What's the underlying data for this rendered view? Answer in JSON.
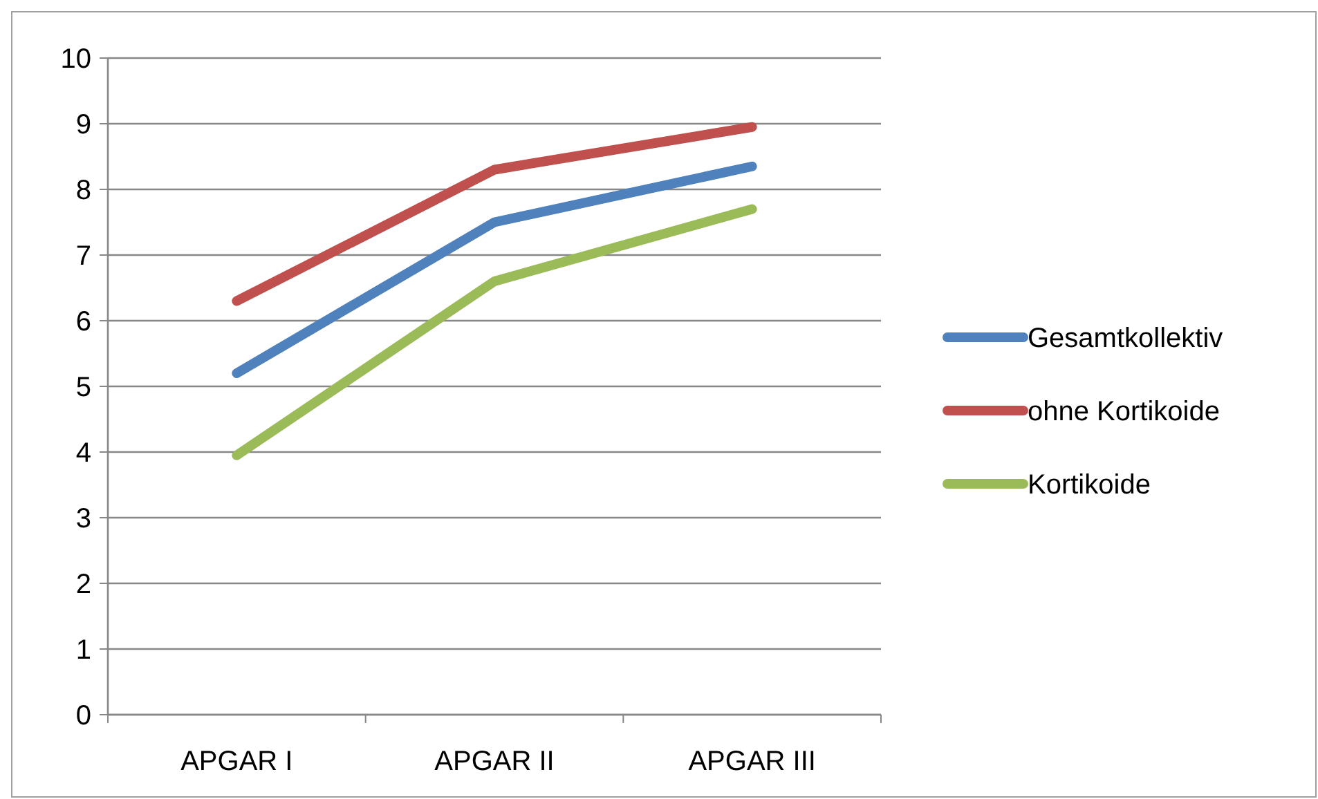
{
  "chart_data": {
    "type": "line",
    "categories": [
      "APGAR I",
      "APGAR II",
      "APGAR III"
    ],
    "series": [
      {
        "name": "Gesamtkollektiv",
        "color": "#4f81bd",
        "values": [
          5.2,
          7.5,
          8.35
        ]
      },
      {
        "name": "ohne Kortikoide",
        "color": "#c0504d",
        "values": [
          6.3,
          8.3,
          8.95
        ]
      },
      {
        "name": "Kortikoide",
        "color": "#9bbb59",
        "values": [
          3.95,
          6.6,
          7.7
        ]
      }
    ],
    "ylim": [
      0,
      10
    ],
    "yticks": [
      0,
      1,
      2,
      3,
      4,
      5,
      6,
      7,
      8,
      9,
      10
    ],
    "grid": "y",
    "legend": "right",
    "marker": "none",
    "line_style": "solid"
  }
}
